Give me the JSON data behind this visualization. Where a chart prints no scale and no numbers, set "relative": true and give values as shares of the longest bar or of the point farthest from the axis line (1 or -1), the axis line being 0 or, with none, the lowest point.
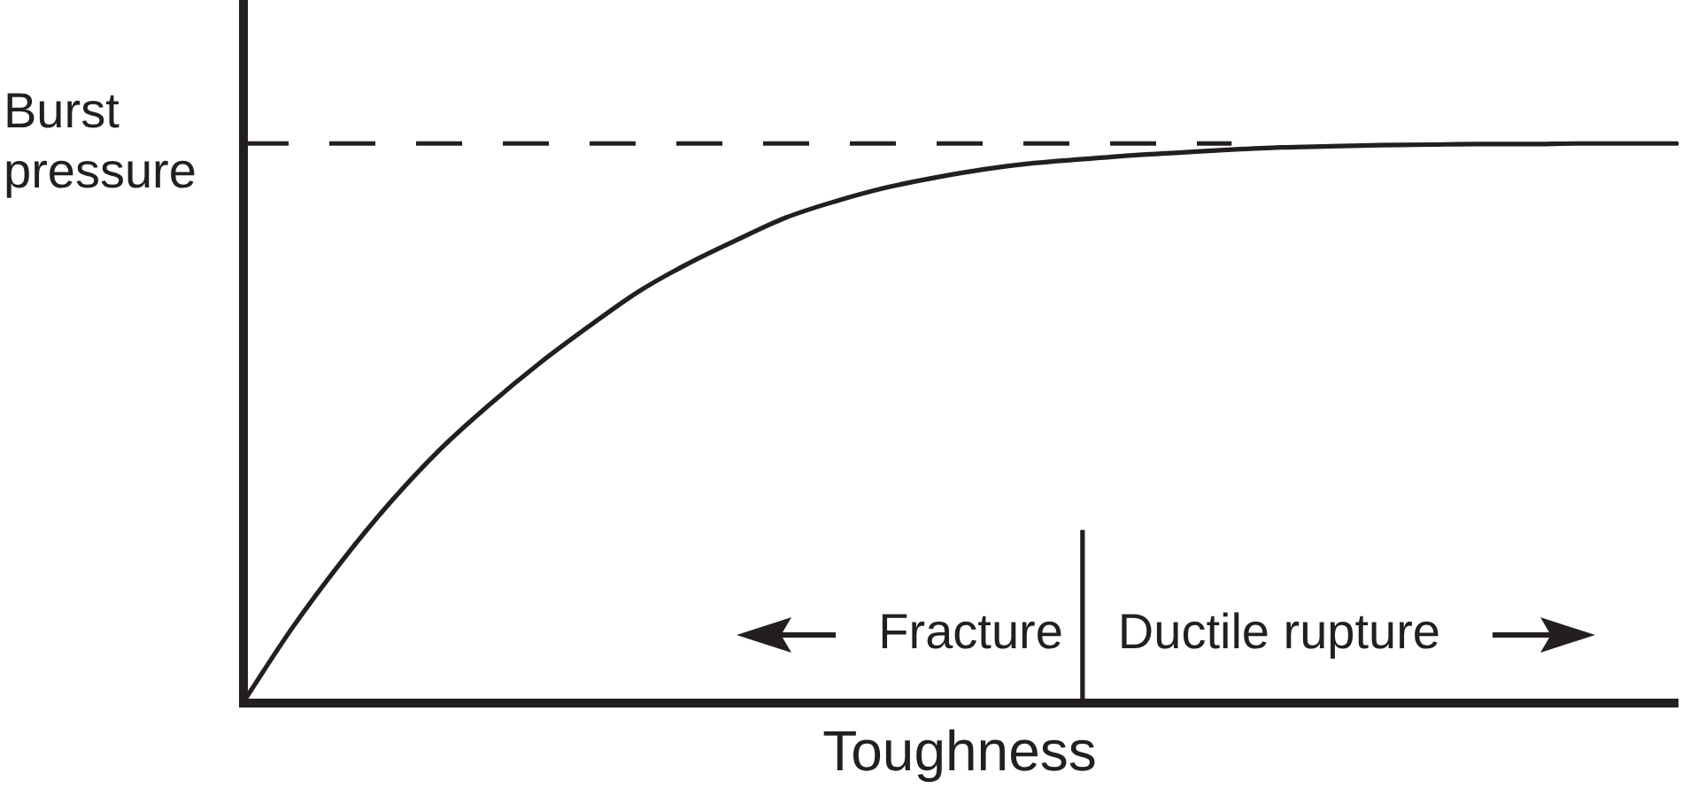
{
  "chart_data": {
    "type": "line",
    "relative": true,
    "xlabel": "Toughness",
    "categories": [
      null,
      null,
      null,
      null,
      null,
      null,
      null,
      null,
      null,
      null,
      null,
      null,
      null,
      null,
      null,
      null,
      null,
      null,
      null,
      null,
      null,
      null,
      null,
      null,
      null,
      null,
      null,
      null,
      null,
      null
    ],
    "values": [
      0,
      0.134,
      0.253,
      0.36,
      0.454,
      0.534,
      0.607,
      0.673,
      0.735,
      0.785,
      0.828,
      0.868,
      0.897,
      0.921,
      0.939,
      0.954,
      0.965,
      0.972,
      0.979,
      0.984,
      0.989,
      0.993,
      0.995,
      0.997,
      0.998,
      0.999,
      0.999,
      1,
      1,
      1
    ],
    "color": "#231f20",
    "marker": "none",
    "line_style": "solid",
    "tick_labels": false,
    "ref_lines": [
      {
        "axis": "y",
        "value": 1,
        "label": "Burst pressure",
        "line_style": "dashed",
        "color": "#231f20"
      }
    ],
    "annotations": [
      "Fracture",
      "Ductile rupture"
    ]
  }
}
